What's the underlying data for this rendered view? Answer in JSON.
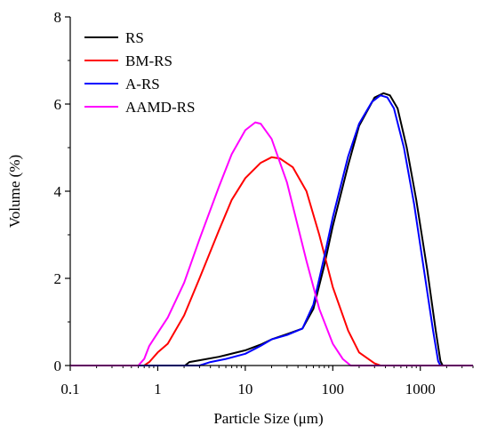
{
  "chart_data": {
    "type": "line",
    "title": "",
    "xlabel": "Particle Size (μm)",
    "ylabel": "Volume (%)",
    "x_scale": "log",
    "xlim": [
      0.1,
      4000
    ],
    "ylim": [
      0,
      8
    ],
    "x_ticks": [
      0.1,
      1,
      10,
      100,
      1000
    ],
    "x_tick_labels": [
      "0.1",
      "1",
      "10",
      "100",
      "1000"
    ],
    "y_ticks": [
      0,
      2,
      4,
      6,
      8
    ],
    "y_tick_labels": [
      "0",
      "2",
      "4",
      "6",
      "8"
    ],
    "grid": false,
    "legend_position": "top-left",
    "series": [
      {
        "name": "RS",
        "color": "#000000",
        "points": [
          [
            0.1,
            0
          ],
          [
            2.05,
            0
          ],
          [
            2.3,
            0.08
          ],
          [
            3,
            0.12
          ],
          [
            5,
            0.2
          ],
          [
            10,
            0.35
          ],
          [
            15,
            0.48
          ],
          [
            20,
            0.6
          ],
          [
            30,
            0.72
          ],
          [
            45,
            0.85
          ],
          [
            60,
            1.3
          ],
          [
            80,
            2.3
          ],
          [
            100,
            3.2
          ],
          [
            150,
            4.6
          ],
          [
            200,
            5.5
          ],
          [
            300,
            6.15
          ],
          [
            380,
            6.25
          ],
          [
            450,
            6.2
          ],
          [
            550,
            5.9
          ],
          [
            700,
            5.0
          ],
          [
            900,
            3.8
          ],
          [
            1200,
            2.2
          ],
          [
            1500,
            0.8
          ],
          [
            1700,
            0.1
          ],
          [
            1800,
            0
          ],
          [
            4000,
            0
          ]
        ]
      },
      {
        "name": "BM-RS",
        "color": "#ff0000",
        "points": [
          [
            0.1,
            0
          ],
          [
            0.7,
            0
          ],
          [
            0.8,
            0.08
          ],
          [
            1,
            0.3
          ],
          [
            1.3,
            0.5
          ],
          [
            2,
            1.15
          ],
          [
            3,
            2.0
          ],
          [
            5,
            3.1
          ],
          [
            7,
            3.8
          ],
          [
            10,
            4.3
          ],
          [
            15,
            4.65
          ],
          [
            20,
            4.78
          ],
          [
            25,
            4.75
          ],
          [
            35,
            4.55
          ],
          [
            50,
            4.0
          ],
          [
            70,
            3.0
          ],
          [
            100,
            1.8
          ],
          [
            150,
            0.8
          ],
          [
            200,
            0.3
          ],
          [
            300,
            0.05
          ],
          [
            350,
            0
          ],
          [
            4000,
            0
          ]
        ]
      },
      {
        "name": "A-RS",
        "color": "#0000ff",
        "points": [
          [
            0.1,
            0
          ],
          [
            3,
            0
          ],
          [
            4,
            0.08
          ],
          [
            6,
            0.15
          ],
          [
            10,
            0.27
          ],
          [
            15,
            0.45
          ],
          [
            20,
            0.6
          ],
          [
            30,
            0.7
          ],
          [
            45,
            0.85
          ],
          [
            60,
            1.4
          ],
          [
            80,
            2.5
          ],
          [
            100,
            3.4
          ],
          [
            150,
            4.8
          ],
          [
            200,
            5.55
          ],
          [
            280,
            6.05
          ],
          [
            350,
            6.2
          ],
          [
            420,
            6.15
          ],
          [
            500,
            5.9
          ],
          [
            650,
            5.0
          ],
          [
            850,
            3.7
          ],
          [
            1100,
            2.2
          ],
          [
            1400,
            0.8
          ],
          [
            1600,
            0.1
          ],
          [
            1700,
            0
          ],
          [
            4000,
            0
          ]
        ]
      },
      {
        "name": "AAMD-RS",
        "color": "#ff00ff",
        "points": [
          [
            0.1,
            0
          ],
          [
            0.6,
            0
          ],
          [
            0.7,
            0.15
          ],
          [
            0.8,
            0.45
          ],
          [
            1,
            0.75
          ],
          [
            1.3,
            1.1
          ],
          [
            2,
            1.9
          ],
          [
            3,
            2.9
          ],
          [
            5,
            4.1
          ],
          [
            7,
            4.85
          ],
          [
            10,
            5.4
          ],
          [
            13,
            5.58
          ],
          [
            15,
            5.55
          ],
          [
            20,
            5.2
          ],
          [
            30,
            4.2
          ],
          [
            50,
            2.4
          ],
          [
            70,
            1.3
          ],
          [
            100,
            0.5
          ],
          [
            130,
            0.15
          ],
          [
            160,
            0
          ],
          [
            4000,
            0
          ]
        ]
      }
    ]
  }
}
